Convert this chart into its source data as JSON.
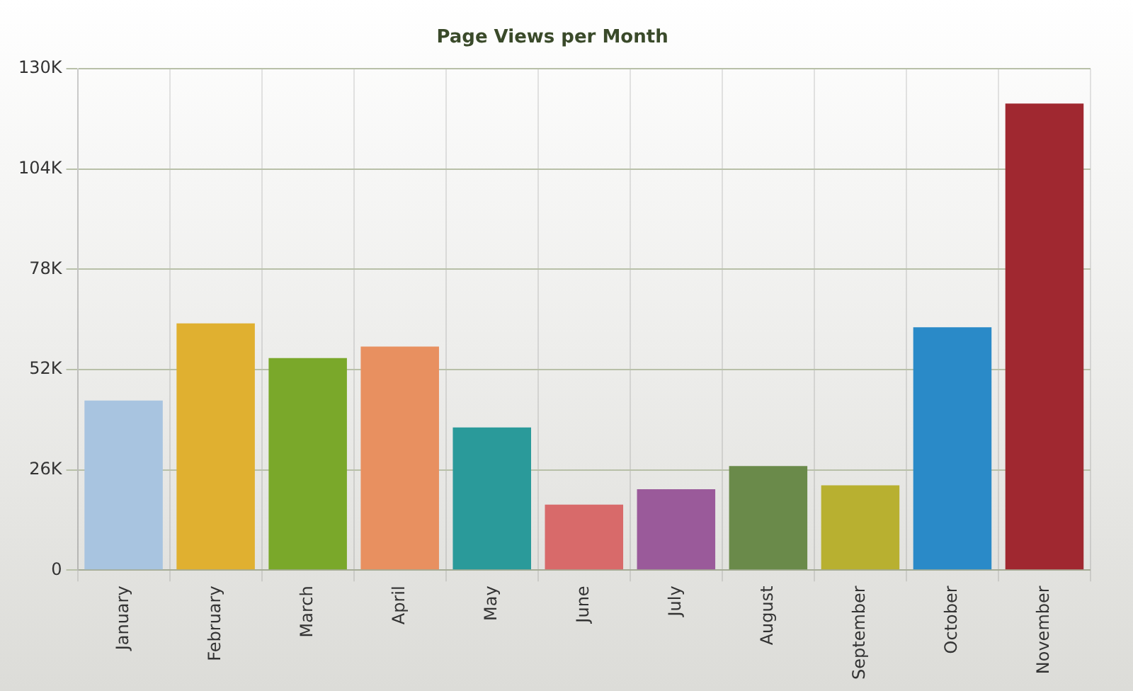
{
  "chart_data": {
    "type": "bar",
    "title": "Page Views per Month",
    "categories": [
      "January",
      "February",
      "March",
      "April",
      "May",
      "June",
      "July",
      "August",
      "September",
      "October",
      "November"
    ],
    "values": [
      44000,
      64000,
      55000,
      58000,
      37000,
      17000,
      21000,
      27000,
      22000,
      63000,
      121000
    ],
    "colors": [
      "#a8c4e0",
      "#e0b030",
      "#7aa82a",
      "#e89060",
      "#2a9a9a",
      "#d86a6a",
      "#9a5a9a",
      "#6a8a4a",
      "#b8b030",
      "#2a8ac8",
      "#a02830"
    ],
    "ylim": [
      0,
      130000
    ],
    "yticks": [
      {
        "value": 0,
        "label": "0"
      },
      {
        "value": 26000,
        "label": "26K"
      },
      {
        "value": 52000,
        "label": "52K"
      },
      {
        "value": 78000,
        "label": "78K"
      },
      {
        "value": 104000,
        "label": "104K"
      },
      {
        "value": 130000,
        "label": "130K"
      }
    ],
    "grid": true,
    "legend": false
  }
}
